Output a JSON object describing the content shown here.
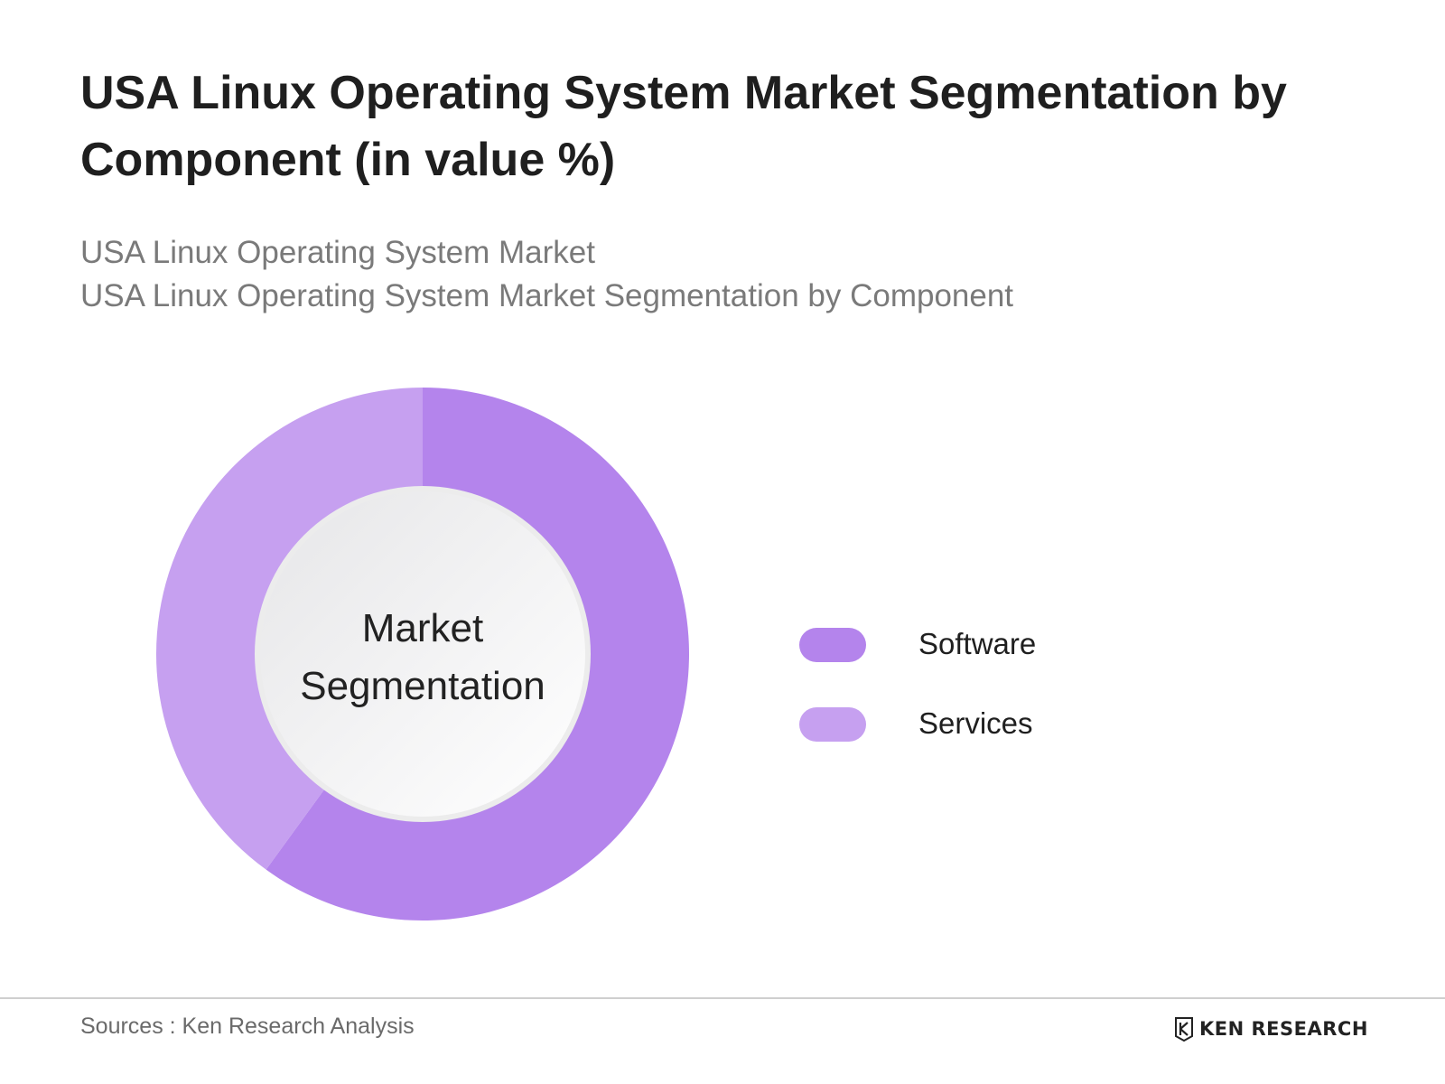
{
  "title": "USA Linux Operating System Market Segmentation by Component (in value %)",
  "subtitle_line1": "USA Linux Operating System Market",
  "subtitle_line2": "USA Linux Operating System Market Segmentation by Component",
  "center_label": "Market Segmentation",
  "chart_data": {
    "type": "pie",
    "variant": "donut",
    "categories": [
      "Software",
      "Services"
    ],
    "values": [
      60,
      40
    ],
    "colors": [
      "#b484ec",
      "#c6a0f0"
    ],
    "legend": "right"
  },
  "source_note": "Sources : Ken Research Analysis",
  "brand": {
    "name": "KEN RESEARCH",
    "logo_icon": "ken-research-logo"
  }
}
